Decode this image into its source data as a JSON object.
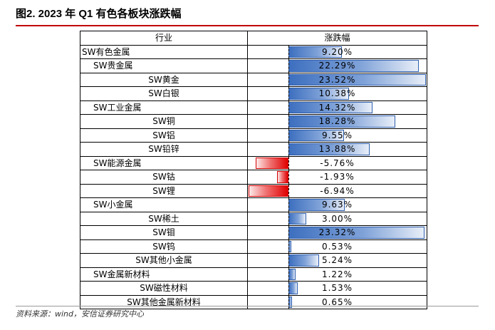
{
  "title": "图2. 2023 年 Q1 有色各板块涨跌幅",
  "source": "资料来源：wind，安信证券研究中心",
  "chart_data": {
    "type": "bar",
    "headers": [
      "行业",
      "涨跌幅"
    ],
    "rows": [
      {
        "name": "SW有色金属",
        "level": 0,
        "value": 9.2,
        "label": "9.20%"
      },
      {
        "name": "SW贵金属",
        "level": 1,
        "value": 22.29,
        "label": "22.29%"
      },
      {
        "name": "SW黄金",
        "level": 2,
        "value": 23.52,
        "label": "23.52%"
      },
      {
        "name": "SW白银",
        "level": 2,
        "value": 10.38,
        "label": "10.38%"
      },
      {
        "name": "SW工业金属",
        "level": 1,
        "value": 14.32,
        "label": "14.32%"
      },
      {
        "name": "SW铜",
        "level": 2,
        "value": 18.28,
        "label": "18.28%"
      },
      {
        "name": "SW铝",
        "level": 2,
        "value": 9.55,
        "label": "9.55%"
      },
      {
        "name": "SW铅锌",
        "level": 2,
        "value": 13.88,
        "label": "13.88%"
      },
      {
        "name": "SW能源金属",
        "level": 1,
        "value": -5.76,
        "label": "-5.76%"
      },
      {
        "name": "SW钴",
        "level": 2,
        "value": -1.93,
        "label": "-1.93%"
      },
      {
        "name": "SW锂",
        "level": 2,
        "value": -6.94,
        "label": "-6.94%"
      },
      {
        "name": "SW小金属",
        "level": 1,
        "value": 9.63,
        "label": "9.63%"
      },
      {
        "name": "SW稀土",
        "level": 2,
        "value": 3.0,
        "label": "3.00%"
      },
      {
        "name": "SW钼",
        "level": 2,
        "value": 23.32,
        "label": "23.32%"
      },
      {
        "name": "SW钨",
        "level": 2,
        "value": 0.53,
        "label": "0.53%"
      },
      {
        "name": "SW其他小金属",
        "level": 2,
        "value": 5.24,
        "label": "5.24%"
      },
      {
        "name": "SW金属新材料",
        "level": 1,
        "value": 1.22,
        "label": "1.22%"
      },
      {
        "name": "SW磁性材料",
        "level": 2,
        "value": 1.53,
        "label": "1.53%"
      },
      {
        "name": "SW其他金属新材料",
        "level": 2,
        "value": 0.65,
        "label": "0.65%"
      }
    ],
    "value_range": [
      -6.94,
      23.52
    ],
    "colors": {
      "positive": "#3d6fbf",
      "negative": "#e00000"
    }
  }
}
